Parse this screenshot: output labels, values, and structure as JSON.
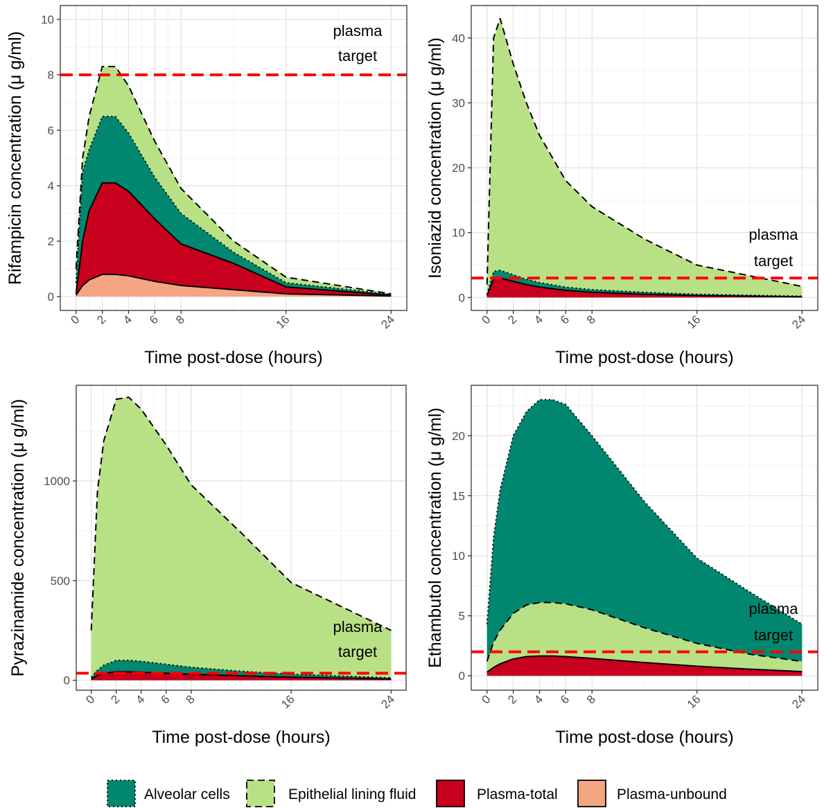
{
  "legend": {
    "position": "bottom",
    "items": [
      {
        "label": "Alveolar cells",
        "color": "#01876F",
        "line": "dotted"
      },
      {
        "label": "Epithelial lining fluid",
        "color": "#B8E186",
        "line": "dashed"
      },
      {
        "label": "Plasma-total",
        "color": "#C7001E",
        "line": "solid"
      },
      {
        "label": "Plasma-unbound",
        "color": "#F4A582",
        "line": "solid"
      }
    ]
  },
  "chart_data": [
    {
      "type": "area",
      "title": "",
      "xlabel": "Time post-dose (hours)",
      "ylabel": "Rifampicin concentration (μ g/ml)",
      "xlim": [
        -1.2,
        25.2
      ],
      "ylim": [
        -0.5,
        10.5
      ],
      "xticks": [
        0,
        2,
        4,
        6,
        8,
        16,
        24
      ],
      "yticks": [
        0,
        2,
        4,
        6,
        8,
        10
      ],
      "grid": true,
      "target": {
        "value": 8,
        "label_lines": [
          "plasma",
          "target"
        ]
      },
      "x": [
        0,
        0.5,
        1,
        2,
        3,
        4,
        6,
        8,
        12,
        16,
        24
      ],
      "series": [
        {
          "name": "Epithelial lining fluid",
          "values": [
            1.0,
            5.0,
            6.5,
            8.3,
            8.3,
            7.6,
            5.6,
            3.9,
            2.0,
            0.7,
            0.1
          ]
        },
        {
          "name": "Alveolar cells",
          "values": [
            0.5,
            4.5,
            5.3,
            6.5,
            6.5,
            5.9,
            4.3,
            3.0,
            1.6,
            0.5,
            0.08
          ]
        },
        {
          "name": "Plasma-total",
          "values": [
            0.1,
            2.0,
            3.1,
            4.1,
            4.1,
            3.8,
            2.8,
            1.9,
            1.2,
            0.35,
            0.05
          ]
        },
        {
          "name": "Plasma-unbound",
          "values": [
            0.05,
            0.4,
            0.6,
            0.8,
            0.8,
            0.75,
            0.55,
            0.4,
            0.25,
            0.1,
            0.02
          ]
        }
      ]
    },
    {
      "type": "area",
      "title": "",
      "xlabel": "Time post-dose (hours)",
      "ylabel": "Isoniazid concentration (μ g/ml)",
      "xlim": [
        -1.2,
        25.2
      ],
      "ylim": [
        -2,
        45
      ],
      "xticks": [
        0,
        2,
        4,
        6,
        8,
        16,
        24
      ],
      "yticks": [
        0,
        10,
        20,
        30,
        40
      ],
      "grid": true,
      "target": {
        "value": 3,
        "label_lines": [
          "plasma",
          "target"
        ]
      },
      "x": [
        0,
        0.5,
        1,
        2,
        3,
        4,
        6,
        8,
        12,
        16,
        24
      ],
      "series": [
        {
          "name": "Epithelial lining fluid",
          "values": [
            2.0,
            40.0,
            43.0,
            36.0,
            30.0,
            25.0,
            18.0,
            14.0,
            9.0,
            5.0,
            1.7
          ]
        },
        {
          "name": "Alveolar cells",
          "values": [
            0.5,
            4.0,
            4.2,
            3.5,
            2.8,
            2.3,
            1.6,
            1.2,
            0.8,
            0.5,
            0.2
          ]
        },
        {
          "name": "Plasma-total",
          "values": [
            0.3,
            2.8,
            3.0,
            2.5,
            2.0,
            1.6,
            1.1,
            0.8,
            0.5,
            0.3,
            0.1
          ]
        }
      ]
    },
    {
      "type": "area",
      "title": "",
      "xlabel": "Time post-dose (hours)",
      "ylabel": "Pyrazinamide concentration (μ g/ml)",
      "xlim": [
        -1.2,
        25.2
      ],
      "ylim": [
        -50,
        1480
      ],
      "xticks": [
        0,
        2,
        4,
        6,
        8,
        16,
        24
      ],
      "yticks": [
        0,
        500,
        1000
      ],
      "grid": true,
      "target": {
        "value": 35,
        "label_lines": [
          "plasma",
          "target"
        ]
      },
      "x": [
        0,
        0.5,
        1,
        2,
        3,
        4,
        6,
        8,
        12,
        16,
        24
      ],
      "series": [
        {
          "name": "Epithelial lining fluid",
          "values": [
            250,
            950,
            1200,
            1410,
            1420,
            1360,
            1180,
            980,
            740,
            490,
            250
          ]
        },
        {
          "name": "Alveolar cells",
          "values": [
            15,
            50,
            75,
            100,
            100,
            95,
            80,
            65,
            45,
            30,
            12
          ]
        },
        {
          "name": "Plasma-total",
          "values": [
            5,
            25,
            35,
            42,
            42,
            40,
            35,
            30,
            22,
            15,
            6
          ]
        }
      ]
    },
    {
      "type": "area",
      "title": "",
      "xlabel": "Time post-dose (hours)",
      "ylabel": "Ethambutol concentration (μ g/ml)",
      "xlim": [
        -1.2,
        25.2
      ],
      "ylim": [
        -1.2,
        24.2
      ],
      "xticks": [
        0,
        2,
        4,
        6,
        8,
        16,
        24
      ],
      "yticks": [
        0,
        5,
        10,
        15,
        20
      ],
      "grid": true,
      "target": {
        "value": 2,
        "label_lines": [
          "plasma",
          "target"
        ]
      },
      "x": [
        0,
        0.5,
        1,
        2,
        3,
        4,
        5,
        6,
        8,
        12,
        16,
        20,
        24
      ],
      "series": [
        {
          "name": "Alveolar cells",
          "values": [
            4.3,
            11.5,
            15.5,
            20.0,
            22.0,
            23.0,
            23.0,
            22.6,
            20.0,
            14.5,
            9.8,
            7.0,
            4.3
          ]
        },
        {
          "name": "Epithelial lining fluid",
          "values": [
            1.2,
            2.8,
            3.8,
            5.2,
            5.9,
            6.1,
            6.1,
            6.0,
            5.5,
            4.0,
            2.7,
            1.8,
            1.2
          ]
        },
        {
          "name": "Plasma-total",
          "values": [
            0.3,
            0.7,
            1.0,
            1.4,
            1.6,
            1.65,
            1.65,
            1.6,
            1.45,
            1.1,
            0.8,
            0.55,
            0.35
          ]
        }
      ]
    }
  ]
}
